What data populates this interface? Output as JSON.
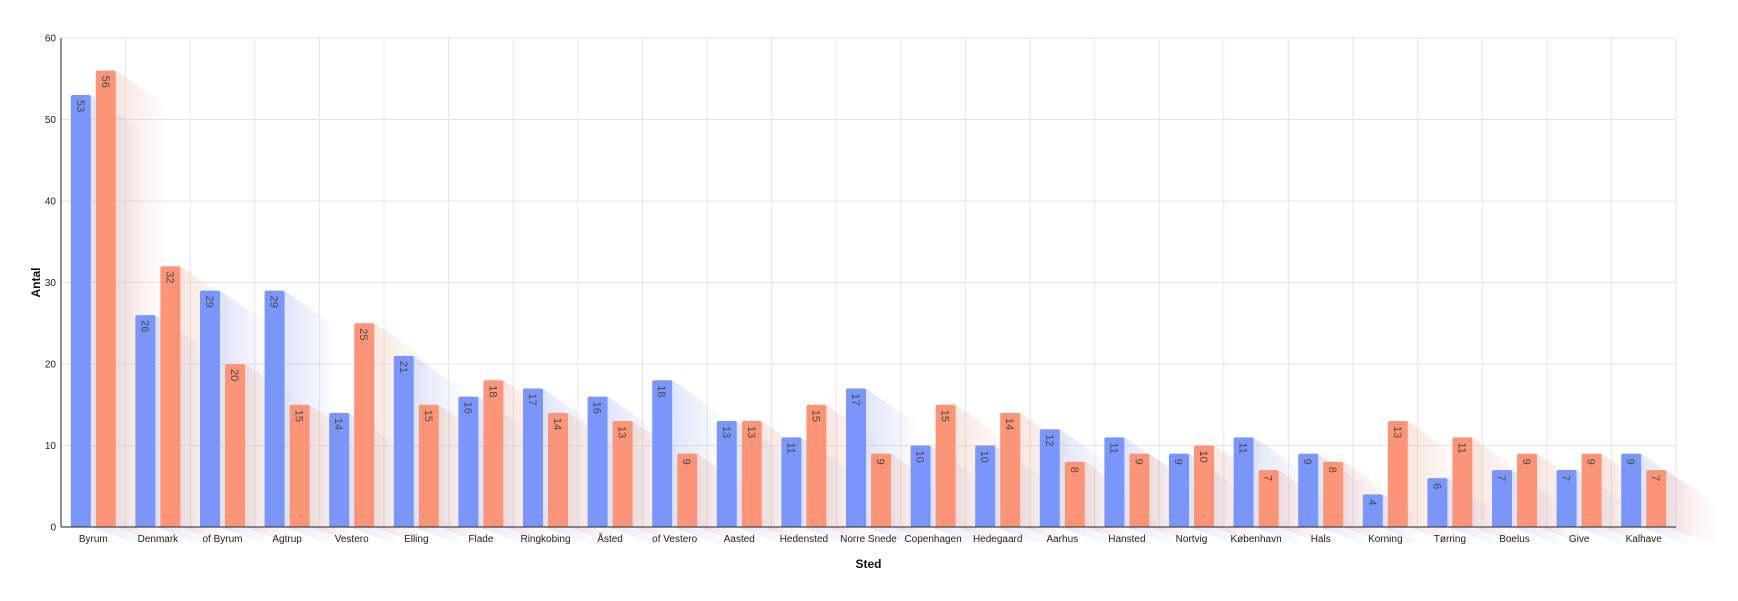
{
  "chart_data": {
    "type": "bar",
    "xlabel": "Sted",
    "ylabel": "Antal",
    "ylim": [
      0,
      60
    ],
    "yticks": [
      0,
      10,
      20,
      30,
      40,
      50,
      60
    ],
    "grid": true,
    "categories": [
      "Byrum",
      "Denmark",
      "of Byrum",
      "Agtrup",
      "Vestero",
      "Elling",
      "Flade",
      "Ringkobing",
      "Åsted",
      "of Vestero",
      "Aasted",
      "Hedensted",
      "Norre Snede",
      "Copenhagen",
      "Hedegaard",
      "Aarhus",
      "Hansted",
      "Nortvig",
      "København",
      "Hals",
      "Korning",
      "Tørring",
      "Boelus",
      "Give",
      "Kalhave"
    ],
    "series": [
      {
        "color": "#7b96fa",
        "values": [
          53,
          26,
          29,
          29,
          14,
          21,
          16,
          17,
          16,
          18,
          13,
          11,
          17,
          10,
          10,
          12,
          11,
          9,
          11,
          9,
          4,
          6,
          7,
          7,
          9
        ]
      },
      {
        "color": "#fc9478",
        "values": [
          56,
          32,
          20,
          15,
          25,
          15,
          18,
          14,
          13,
          9,
          13,
          15,
          9,
          15,
          14,
          8,
          9,
          10,
          7,
          8,
          13,
          11,
          9,
          9,
          7
        ]
      }
    ]
  }
}
